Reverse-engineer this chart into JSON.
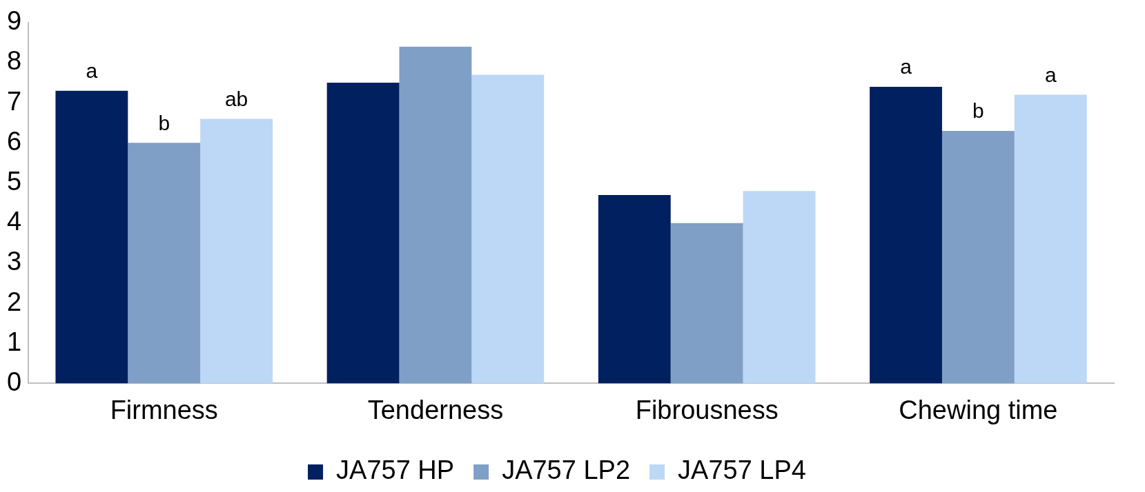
{
  "chart_data": {
    "type": "bar",
    "categories": [
      "Firmness",
      "Tenderness",
      "Fibrousness",
      "Chewing time"
    ],
    "series": [
      {
        "name": "JA757 HP",
        "color": "#002060",
        "values": [
          7.3,
          7.5,
          4.7,
          7.4
        ],
        "value_labels": [
          "a",
          null,
          null,
          "a"
        ]
      },
      {
        "name": "JA757 LP2",
        "color": "#7f9fc6",
        "values": [
          6.0,
          8.4,
          4.0,
          6.3
        ],
        "value_labels": [
          "b",
          null,
          null,
          "b"
        ]
      },
      {
        "name": "JA757 LP4",
        "color": "#bdd7f7",
        "values": [
          6.6,
          7.7,
          4.8,
          7.2
        ],
        "value_labels": [
          "ab",
          null,
          null,
          "a"
        ]
      }
    ],
    "ylim": [
      0,
      9
    ],
    "yticks": [
      0,
      1,
      2,
      3,
      4,
      5,
      6,
      7,
      8,
      9
    ],
    "grid": false,
    "legend": "bottom"
  }
}
